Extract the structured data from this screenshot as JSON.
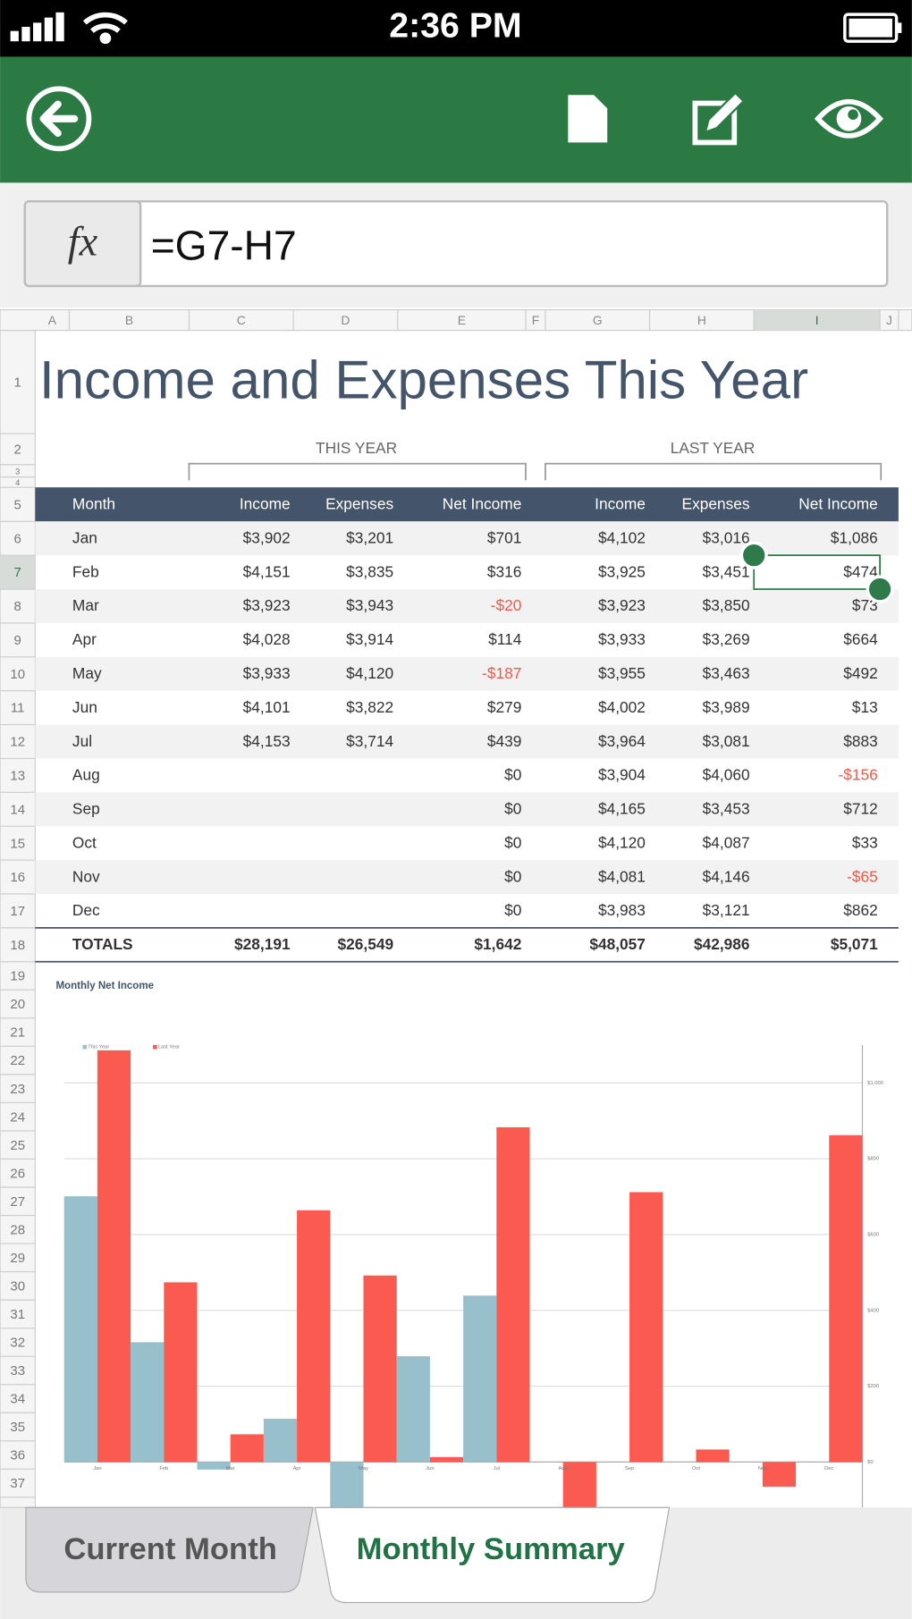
{
  "status_bar": {
    "time": "2:36 PM"
  },
  "formula_bar": {
    "fx": "fx",
    "formula": "=G7-H7"
  },
  "sheet": {
    "columns": [
      "A",
      "B",
      "C",
      "D",
      "E",
      "F",
      "G",
      "H",
      "I",
      "J"
    ],
    "row_numbers": [
      1,
      2,
      3,
      4,
      5,
      6,
      7,
      8,
      9,
      10,
      11,
      12,
      13,
      14,
      15,
      16,
      17,
      18,
      19,
      20,
      21,
      22,
      23,
      24,
      25,
      26,
      27,
      28,
      29,
      30,
      31,
      32,
      33,
      34,
      35,
      36,
      37
    ],
    "title": "Income and Expenses This Year",
    "groups": [
      "THIS YEAR",
      "LAST YEAR"
    ],
    "header": [
      "Month",
      "Income",
      "Expenses",
      "Net Income",
      "Income",
      "Expenses",
      "Net Income"
    ],
    "rows": [
      [
        "Jan",
        "$3,902",
        "$3,201",
        "$701",
        "$4,102",
        "$3,016",
        "$1,086"
      ],
      [
        "Feb",
        "$4,151",
        "$3,835",
        "$316",
        "$3,925",
        "$3,451",
        "$474"
      ],
      [
        "Mar",
        "$3,923",
        "$3,943",
        "-$20",
        "$3,923",
        "$3,850",
        "$73"
      ],
      [
        "Apr",
        "$4,028",
        "$3,914",
        "$114",
        "$3,933",
        "$3,269",
        "$664"
      ],
      [
        "May",
        "$3,933",
        "$4,120",
        "-$187",
        "$3,955",
        "$3,463",
        "$492"
      ],
      [
        "Jun",
        "$4,101",
        "$3,822",
        "$279",
        "$4,002",
        "$3,989",
        "$13"
      ],
      [
        "Jul",
        "$4,153",
        "$3,714",
        "$439",
        "$3,964",
        "$3,081",
        "$883"
      ],
      [
        "Aug",
        null,
        null,
        "$0",
        "$3,904",
        "$4,060",
        "-$156"
      ],
      [
        "Sep",
        null,
        null,
        "$0",
        "$4,165",
        "$3,453",
        "$712"
      ],
      [
        "Oct",
        null,
        null,
        "$0",
        "$4,120",
        "$4,087",
        "$33"
      ],
      [
        "Nov",
        null,
        null,
        "$0",
        "$4,081",
        "$4,146",
        "-$65"
      ],
      [
        "Dec",
        null,
        null,
        "$0",
        "$3,983",
        "$3,121",
        "$862"
      ]
    ],
    "totals": [
      "TOTALS",
      "$28,191",
      "$26,549",
      "$1,642",
      "$48,057",
      "$42,986",
      "$5,071"
    ]
  },
  "chart_data": {
    "type": "bar",
    "title": "Monthly Net Income",
    "categories": [
      "Jan",
      "Feb",
      "Mar",
      "Apr",
      "May",
      "Jun",
      "Jul",
      "Aug",
      "Sep",
      "Oct",
      "Nov",
      "Dec"
    ],
    "series": [
      {
        "name": "This Year",
        "color": "#98c0cc",
        "values": [
          701,
          316,
          -20,
          114,
          -187,
          279,
          439,
          0,
          0,
          0,
          0,
          0
        ]
      },
      {
        "name": "Last Year",
        "color": "#fa5a50",
        "values": [
          1086,
          474,
          73,
          664,
          492,
          13,
          883,
          -156,
          712,
          33,
          -65,
          862
        ]
      }
    ],
    "ylim": [
      -120,
      1133
    ],
    "yticks": [
      {
        "value": 0,
        "label": "$0"
      },
      {
        "value": 200,
        "label": "$200"
      },
      {
        "value": 400,
        "label": "$400"
      },
      {
        "value": 600,
        "label": "$600"
      },
      {
        "value": 800,
        "label": "$800"
      },
      {
        "value": 1000,
        "label": "$1,000"
      }
    ],
    "grid": true,
    "legend": "top-left"
  },
  "tabs": [
    "Current Month",
    "Monthly Summary"
  ],
  "active_tab": 1
}
